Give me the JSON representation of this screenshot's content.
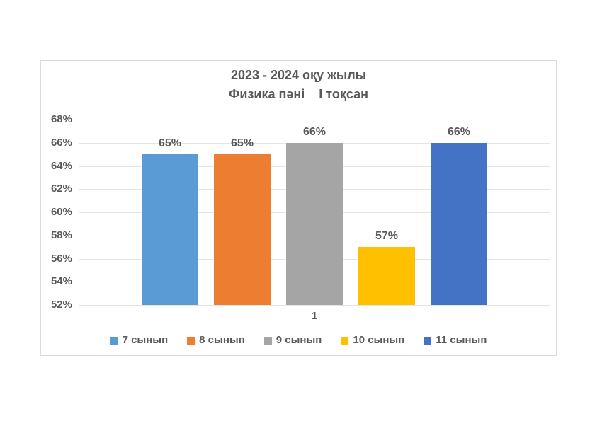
{
  "page": {
    "background": "#FFFFFF"
  },
  "chart_data": {
    "type": "bar",
    "title": "2023 - 2024 оқу жылы",
    "subtitle": "Физика пәні    І тоқсан",
    "categories": [
      "1"
    ],
    "series": [
      {
        "name": "7 сынып",
        "values": [
          65
        ],
        "color": "#5B9BD5"
      },
      {
        "name": "8 сынып",
        "values": [
          65
        ],
        "color": "#ED7D31"
      },
      {
        "name": "9 сынып",
        "values": [
          66
        ],
        "color": "#A5A5A5"
      },
      {
        "name": "10 сынып",
        "values": [
          57
        ],
        "color": "#FFC000"
      },
      {
        "name": "11 сынып",
        "values": [
          66
        ],
        "color": "#4472C4"
      }
    ],
    "data_labels": [
      "65%",
      "65%",
      "66%",
      "57%",
      "66%"
    ],
    "ylim": [
      52,
      68
    ],
    "ytick_step": 2,
    "ytick_labels": [
      "52%",
      "54%",
      "56%",
      "58%",
      "60%",
      "62%",
      "64%",
      "66%",
      "68%"
    ],
    "ytick_suffix": "%",
    "data_label_suffix": "%",
    "grid": true,
    "legend_position": "bottom",
    "text_color": "#595959",
    "grid_color": "#E4E4E4",
    "frame_border_color": "#D9D9D9"
  }
}
